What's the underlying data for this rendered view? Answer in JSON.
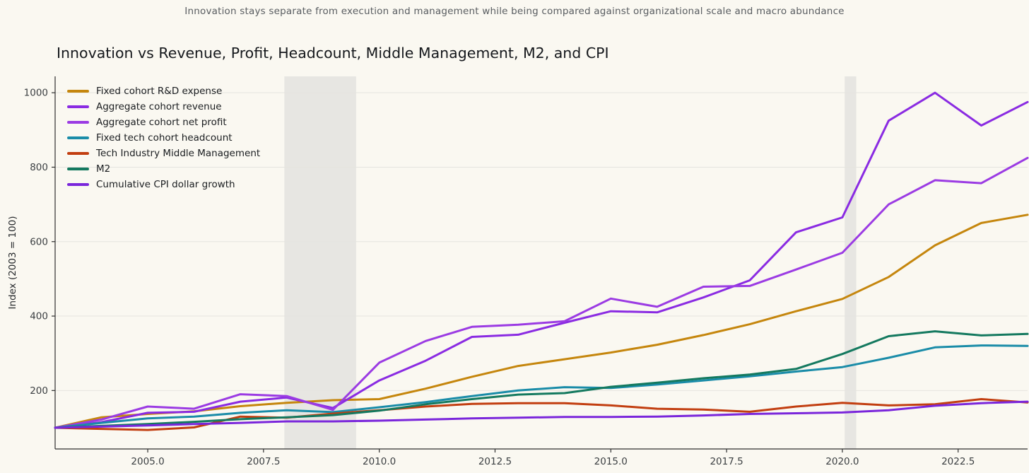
{
  "header": {
    "subtitle": "Innovation stays separate from execution and management while being compared against organizational scale and macro abundance",
    "title": "Innovation vs Revenue, Profit, Headcount, Middle Management, M2, and CPI"
  },
  "colors": {
    "background": "#FAF8F1",
    "gridline": "#E5E4DF",
    "recession_band": "#E7E6E2",
    "axis": "#2f2f2f",
    "tick_label": "#3b3f42"
  },
  "chart_data": {
    "type": "line",
    "title": "Innovation vs Revenue, Profit, Headcount, Middle Management, M2, and CPI",
    "subtitle": "Innovation stays separate from execution and management while being compared against organizational scale and macro abundance",
    "xlabel": "",
    "ylabel": "Index (2003 = 100)",
    "grid": "horizontal-only",
    "legend_position": "upper-left",
    "xlim": [
      2003,
      2024
    ],
    "ylim": [
      43,
      1044
    ],
    "x": [
      2003,
      2004,
      2005,
      2006,
      2007,
      2008,
      2009,
      2010,
      2011,
      2012,
      2013,
      2014,
      2015,
      2016,
      2017,
      2018,
      2019,
      2020,
      2021,
      2022,
      2023,
      2024
    ],
    "xticks": {
      "values": [
        2005,
        2007.5,
        2010,
        2012.5,
        2015,
        2017.5,
        2020,
        2022.5
      ],
      "labels": [
        "2005.0",
        "2007.5",
        "2010.0",
        "2012.5",
        "2015.0",
        "2017.5",
        "2020.0",
        "2022.5"
      ]
    },
    "yticks": {
      "values": [
        200,
        400,
        600,
        800,
        1000
      ],
      "labels": [
        "200",
        "400",
        "600",
        "800",
        "1000"
      ]
    },
    "recession_bands": [
      {
        "from": 2007.95,
        "to": 2009.5
      },
      {
        "from": 2020.05,
        "to": 2020.3
      }
    ],
    "series": [
      {
        "name": "Fixed cohort R&D expense",
        "color": "#C5860D",
        "values": [
          100,
          128,
          137,
          144,
          158,
          167,
          174,
          177,
          205,
          237,
          266,
          284,
          302,
          323,
          349,
          378,
          413,
          446,
          505,
          590,
          650,
          672
        ]
      },
      {
        "name": "Aggregate cohort revenue",
        "color": "#8A2BE2",
        "values": [
          100,
          115,
          140,
          143,
          170,
          181,
          153,
          227,
          280,
          344,
          350,
          382,
          413,
          410,
          450,
          496,
          625,
          665,
          925,
          1000,
          912,
          975
        ]
      },
      {
        "name": "Aggregate cohort net profit",
        "color": "#9B3BE3",
        "values": [
          100,
          122,
          157,
          151,
          190,
          185,
          148,
          275,
          333,
          371,
          377,
          386,
          447,
          425,
          479,
          481,
          525,
          570,
          700,
          765,
          757,
          825
        ]
      },
      {
        "name": "Fixed tech cohort headcount",
        "color": "#1A8CA8",
        "values": [
          100,
          113,
          125,
          130,
          140,
          147,
          142,
          155,
          169,
          185,
          200,
          209,
          207,
          216,
          227,
          238,
          251,
          263,
          288,
          316,
          321,
          320
        ]
      },
      {
        "name": "Tech Industry Middle Management",
        "color": "#C23E10",
        "values": [
          100,
          97,
          94,
          101,
          130,
          127,
          138,
          147,
          157,
          164,
          166,
          166,
          160,
          151,
          149,
          143,
          157,
          167,
          160,
          163,
          177,
          168
        ]
      },
      {
        "name": "M2",
        "color": "#14795F",
        "values": [
          100,
          105,
          110,
          116,
          123,
          128,
          134,
          146,
          163,
          177,
          189,
          193,
          210,
          221,
          233,
          243,
          258,
          298,
          346,
          359,
          348,
          352
        ]
      },
      {
        "name": "Cumulative CPI dollar growth",
        "color": "#7A26DB",
        "values": [
          100,
          103,
          106,
          110,
          113,
          117,
          117,
          119,
          122,
          125,
          127,
          129,
          129,
          130,
          133,
          137,
          139,
          141,
          147,
          159,
          166,
          170
        ]
      }
    ]
  }
}
